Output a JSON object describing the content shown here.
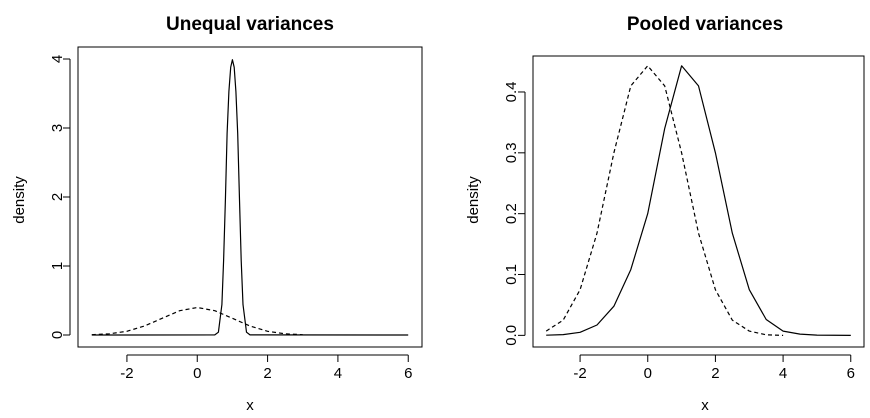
{
  "chart_data": [
    {
      "type": "line",
      "title": "Unequal variances",
      "xlabel": "x",
      "ylabel": "density",
      "xlim": [
        -3,
        6
      ],
      "ylim": [
        0,
        4
      ],
      "xticks": [
        -2,
        0,
        2,
        4,
        6
      ],
      "yticks": [
        0,
        1,
        2,
        3,
        4
      ],
      "grid": false,
      "legend": "none",
      "series": [
        {
          "style": "solid",
          "x": [
            -3,
            0.5,
            0.6,
            0.7,
            0.75,
            0.8,
            0.85,
            0.9,
            0.95,
            1.0,
            1.05,
            1.1,
            1.15,
            1.2,
            1.25,
            1.3,
            1.4,
            1.5,
            6
          ],
          "y": [
            0,
            0.001,
            0.04,
            0.44,
            1.08,
            1.96,
            2.92,
            3.53,
            3.88,
            3.99,
            3.88,
            3.53,
            2.92,
            1.96,
            1.08,
            0.44,
            0.04,
            0.001,
            0
          ]
        },
        {
          "style": "dashed",
          "x": [
            -3,
            -2.5,
            -2,
            -1.5,
            -1,
            -0.5,
            0,
            0.5,
            1,
            1.5,
            2,
            2.5,
            3
          ],
          "y": [
            0.004,
            0.018,
            0.054,
            0.13,
            0.242,
            0.352,
            0.399,
            0.352,
            0.242,
            0.13,
            0.054,
            0.018,
            0.004
          ]
        }
      ]
    },
    {
      "type": "line",
      "title": "Pooled variances",
      "xlabel": "x",
      "ylabel": "density",
      "xlim": [
        -3,
        6
      ],
      "ylim": [
        0,
        0.44
      ],
      "xticks": [
        -2,
        0,
        2,
        4,
        6
      ],
      "yticks": [
        0.0,
        0.1,
        0.2,
        0.3,
        0.4
      ],
      "ytick_labels": [
        "0.0",
        "0.1",
        "0.2",
        "0.3",
        "0.4"
      ],
      "grid": false,
      "legend": "none",
      "series": [
        {
          "style": "solid",
          "x": [
            -3,
            -2.5,
            -2,
            -1.5,
            -1,
            -0.5,
            0,
            0.5,
            1,
            1.5,
            2,
            2.5,
            3,
            3.5,
            4,
            4.5,
            5,
            6
          ],
          "y": [
            0.0002,
            0.0012,
            0.005,
            0.017,
            0.048,
            0.108,
            0.2,
            0.34,
            0.443,
            0.41,
            0.3,
            0.168,
            0.075,
            0.026,
            0.007,
            0.002,
            0.0004,
            0
          ]
        },
        {
          "style": "dashed",
          "x": [
            -3,
            -2.5,
            -2,
            -1.5,
            -1,
            -0.5,
            0,
            0.5,
            1,
            1.5,
            2,
            2.5,
            3,
            3.5,
            4
          ],
          "y": [
            0.007,
            0.025,
            0.075,
            0.168,
            0.3,
            0.41,
            0.443,
            0.41,
            0.3,
            0.168,
            0.075,
            0.025,
            0.007,
            0.001,
            0
          ]
        }
      ]
    }
  ]
}
